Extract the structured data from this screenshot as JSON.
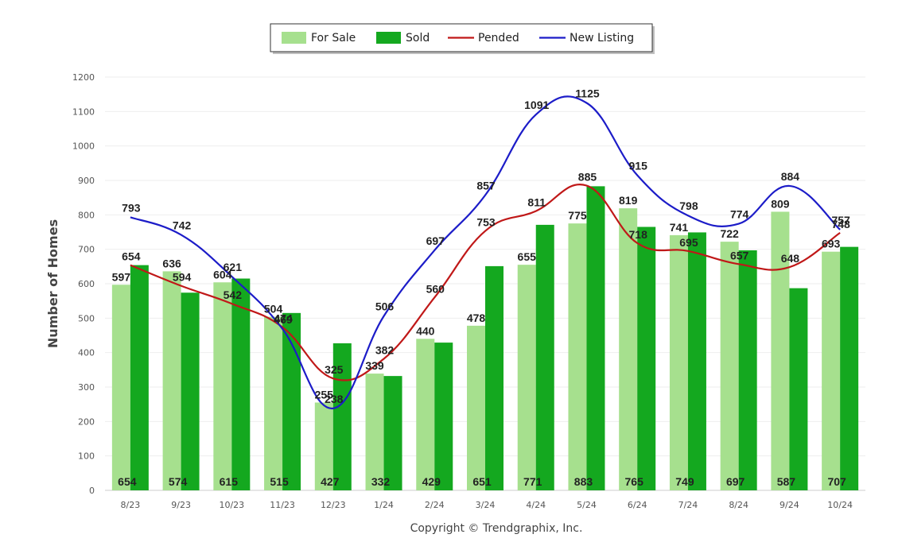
{
  "chart_data": {
    "type": "bar",
    "categories": [
      "8/23",
      "9/23",
      "10/23",
      "11/23",
      "12/23",
      "1/24",
      "2/24",
      "3/24",
      "4/24",
      "5/24",
      "6/24",
      "7/24",
      "8/24",
      "9/24",
      "10/24"
    ],
    "ylabel": "Number of Homes",
    "ylim": [
      0,
      1200
    ],
    "yticks": [
      0,
      100,
      200,
      300,
      400,
      500,
      600,
      700,
      800,
      900,
      1000,
      1100,
      1200
    ],
    "grid": true,
    "legend_position": "top-center",
    "series": [
      {
        "name": "For Sale",
        "kind": "bar",
        "color": "#a6e08e",
        "values": [
          597,
          636,
          604,
          504,
          255,
          339,
          440,
          478,
          655,
          775,
          819,
          741,
          722,
          809,
          693
        ]
      },
      {
        "name": "Sold",
        "kind": "bar",
        "color": "#14a81f",
        "values": [
          654,
          574,
          615,
          515,
          427,
          332,
          429,
          651,
          771,
          883,
          765,
          749,
          697,
          587,
          707
        ]
      },
      {
        "name": "Pended",
        "kind": "line",
        "color": "#c01818",
        "values": [
          654,
          594,
          542,
          474,
          325,
          382,
          560,
          753,
          811,
          885,
          718,
          695,
          657,
          648,
          748
        ]
      },
      {
        "name": "New Listing",
        "kind": "line",
        "color": "#1c1cc8",
        "values": [
          793,
          742,
          621,
          469,
          238,
          506,
          697,
          857,
          1091,
          1125,
          915,
          798,
          774,
          884,
          757
        ]
      }
    ]
  },
  "footer": {
    "copyright": "Copyright © Trendgraphix, Inc."
  }
}
